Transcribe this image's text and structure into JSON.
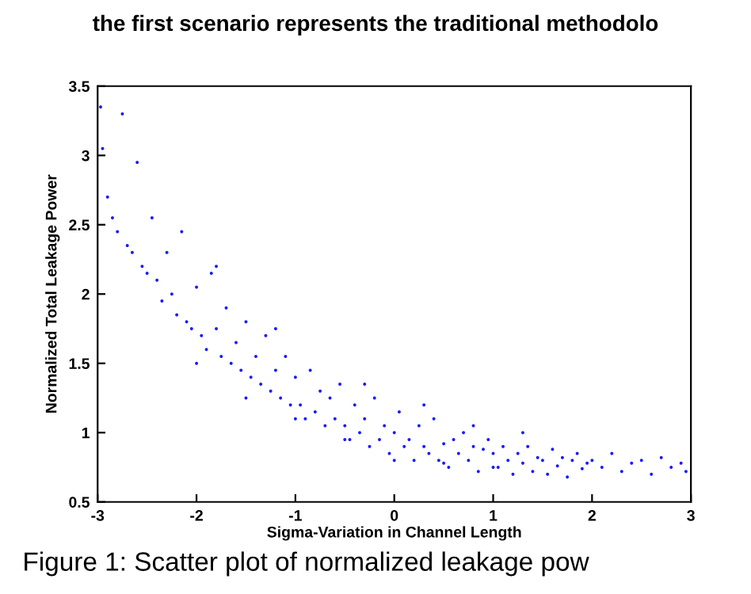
{
  "chart_data": {
    "type": "scatter",
    "xlabel": "Sigma-Variation in Channel Length",
    "ylabel": "Normalized Total Leakage Power",
    "annotations": [
      "the first scenario represents the traditional methodolo",
      "Figure 1: Scatter plot of normalized leakage pow"
    ],
    "x": [
      -2.97,
      -2.95,
      -2.9,
      -2.85,
      -2.8,
      -2.75,
      -2.7,
      -2.65,
      -2.6,
      -2.55,
      -2.5,
      -2.45,
      -2.4,
      -2.35,
      -2.3,
      -2.25,
      -2.2,
      -2.15,
      -2.1,
      -2.05,
      -2.0,
      -1.95,
      -1.9,
      -1.85,
      -1.8,
      -1.75,
      -1.7,
      -1.65,
      -1.6,
      -1.55,
      -1.5,
      -1.45,
      -1.4,
      -1.35,
      -1.3,
      -1.25,
      -1.2,
      -1.15,
      -1.1,
      -1.05,
      -1.0,
      -0.95,
      -0.9,
      -0.85,
      -0.8,
      -0.75,
      -0.7,
      -0.65,
      -0.6,
      -0.55,
      -0.5,
      -0.45,
      -0.4,
      -0.35,
      -0.3,
      -0.25,
      -0.2,
      -0.15,
      -0.1,
      -0.05,
      0.0,
      0.05,
      0.1,
      0.15,
      0.2,
      0.25,
      0.3,
      0.35,
      0.4,
      0.45,
      0.5,
      0.55,
      0.6,
      0.65,
      0.7,
      0.75,
      0.8,
      0.85,
      0.9,
      0.95,
      1.0,
      1.05,
      1.1,
      1.15,
      1.2,
      1.25,
      1.3,
      1.35,
      1.4,
      1.45,
      1.5,
      1.55,
      1.6,
      1.65,
      1.7,
      1.75,
      1.8,
      1.85,
      1.9,
      1.95,
      2.0,
      2.1,
      2.2,
      2.3,
      2.4,
      2.5,
      2.6,
      2.7,
      2.8,
      2.9,
      2.95,
      -2.0,
      -1.5,
      -1.0,
      -0.5,
      0.0,
      0.5,
      1.0,
      -1.8,
      -1.2,
      -0.3,
      0.3,
      0.8,
      1.3
    ],
    "values": [
      3.35,
      3.05,
      2.7,
      2.55,
      2.45,
      3.3,
      2.35,
      2.3,
      2.95,
      2.2,
      2.15,
      2.55,
      2.1,
      1.95,
      2.3,
      2.0,
      1.85,
      2.45,
      1.8,
      1.75,
      2.05,
      1.7,
      1.6,
      2.15,
      1.75,
      1.55,
      1.9,
      1.5,
      1.65,
      1.45,
      1.8,
      1.4,
      1.55,
      1.35,
      1.7,
      1.3,
      1.45,
      1.25,
      1.55,
      1.2,
      1.4,
      1.2,
      1.1,
      1.45,
      1.15,
      1.3,
      1.05,
      1.25,
      1.1,
      1.35,
      1.05,
      0.95,
      1.2,
      1.0,
      1.1,
      0.9,
      1.25,
      0.95,
      1.05,
      0.85,
      1.0,
      1.15,
      0.9,
      0.95,
      0.8,
      1.05,
      0.9,
      0.85,
      1.1,
      0.8,
      0.92,
      0.75,
      0.95,
      0.85,
      1.0,
      0.8,
      0.9,
      0.72,
      0.88,
      0.95,
      0.85,
      0.75,
      0.9,
      0.8,
      0.7,
      0.85,
      0.78,
      0.9,
      0.72,
      0.82,
      0.8,
      0.7,
      0.88,
      0.76,
      0.82,
      0.68,
      0.8,
      0.85,
      0.74,
      0.78,
      0.8,
      0.75,
      0.85,
      0.72,
      0.78,
      0.8,
      0.7,
      0.82,
      0.75,
      0.78,
      0.72,
      1.5,
      1.25,
      1.1,
      0.95,
      0.8,
      0.78,
      0.75,
      2.2,
      1.75,
      1.35,
      1.2,
      1.05,
      1.0
    ],
    "color": "#1a1aff",
    "marker": "circle",
    "xlim": [
      -3,
      3
    ],
    "ylim": [
      0.5,
      3.5
    ],
    "xticks": [
      -3,
      -2,
      -1,
      0,
      1,
      2,
      3
    ],
    "yticks": [
      0.5,
      1,
      1.5,
      2,
      2.5,
      3,
      3.5
    ],
    "grid": false
  }
}
